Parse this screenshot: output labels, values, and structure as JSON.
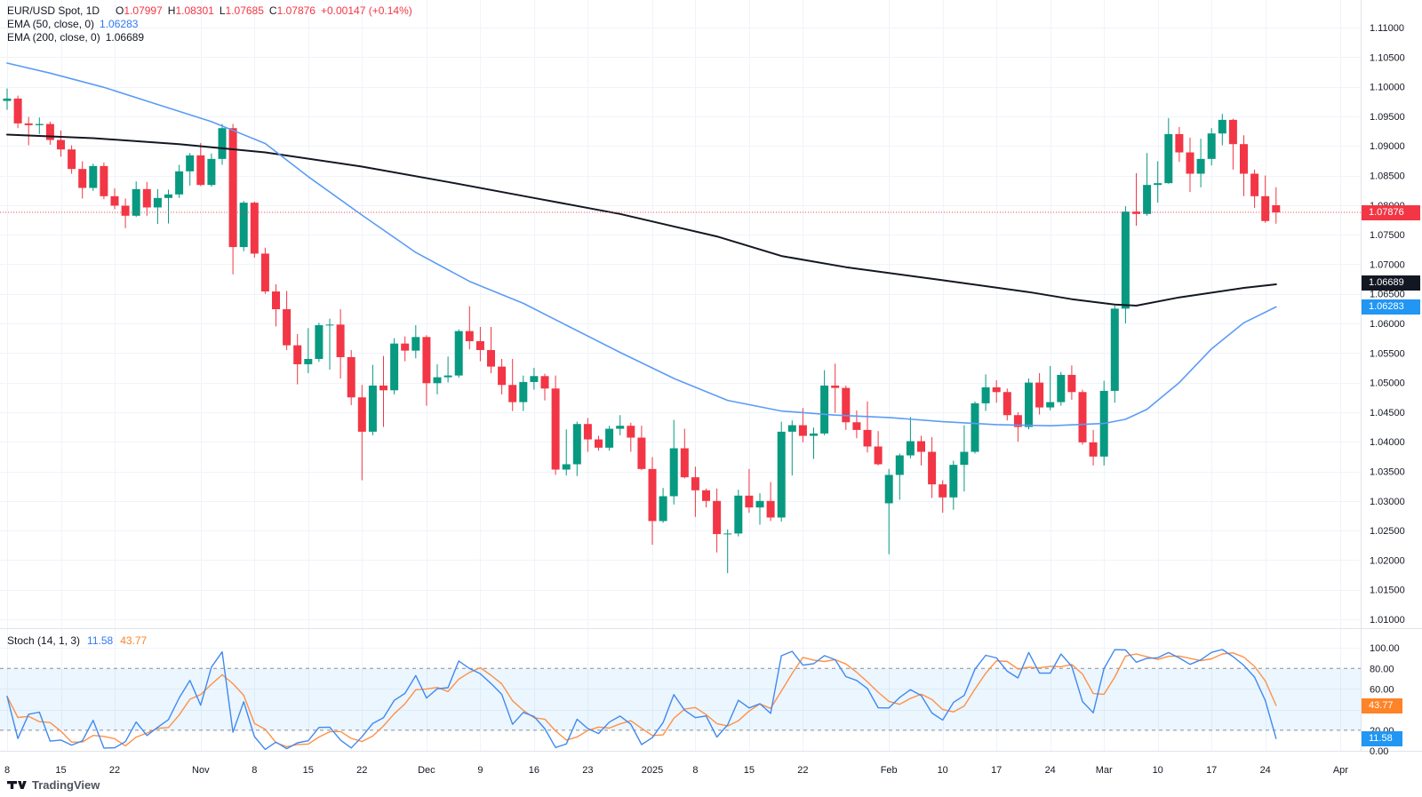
{
  "legend": {
    "symbol": {
      "title": "EUR/USD Spot, 1D",
      "open_label": "O",
      "open": "1.07997",
      "high_label": "H",
      "high": "1.08301",
      "low_label": "L",
      "low": "1.07685",
      "close_label": "C",
      "close": "1.07876",
      "change": "+0.00147 (+0.14%)"
    },
    "ema50": {
      "label": "EMA (50, close, 0)",
      "value": "1.06283"
    },
    "ema200": {
      "label": "EMA (200, close, 0)",
      "value": "1.06689"
    },
    "stoch": {
      "label": "Stoch (14, 1, 3)",
      "k": "11.58",
      "d": "43.77"
    }
  },
  "badges": {
    "last": "1.07876",
    "ema200": "1.06689",
    "ema50": "1.06283",
    "stoch_k": "11.58",
    "stoch_d": "43.77"
  },
  "footer": {
    "brand": "TradingView"
  },
  "colors": {
    "background": "#ffffff",
    "grid": "#f0f3fa",
    "axis_border": "#e0e3eb",
    "axis_text": "#131722",
    "candle_up": "#089981",
    "candle_down": "#f23645",
    "ema50_line": "#5b9cf6",
    "ema200_line": "#131722",
    "stoch_k_line": "#4189f0",
    "stoch_d_line": "#ff9147",
    "stoch_band_fill": "#2196f3",
    "stoch_dashed": "#787b86",
    "last_price_line": "#f23645",
    "badge_last_bg": "#f23645",
    "badge_ema200_bg": "#131722",
    "badge_ema50_bg": "#2196f3",
    "badge_stoch_k_bg": "#2196f3",
    "badge_stoch_d_bg": "#ff8327"
  },
  "chart_data": {
    "type": "candlestick",
    "title": "EUR/USD Spot",
    "interval": "1D",
    "panes": [
      "price",
      "stochastic"
    ],
    "price_pane": {
      "ylim": [
        1.01,
        1.11
      ],
      "tick_labels": [
        "1.11000",
        "1.10500",
        "1.10000",
        "1.09500",
        "1.09000",
        "1.08500",
        "1.08000",
        "1.07500",
        "1.07000",
        "1.06500",
        "1.06000",
        "1.05500",
        "1.05000",
        "1.04500",
        "1.04000",
        "1.03500",
        "1.03000",
        "1.02500",
        "1.02000",
        "1.01500",
        "1.01000"
      ],
      "last_price": 1.07876,
      "ema50_last": 1.06283,
      "ema200_last": 1.06689,
      "ohlc": [
        [
          "10-08",
          1.0976,
          1.0997,
          1.0961,
          1.098
        ],
        [
          "10-09",
          1.098,
          1.0985,
          1.093,
          1.0938
        ],
        [
          "10-10",
          1.0938,
          1.0949,
          1.0901,
          1.0935
        ],
        [
          "10-11",
          1.0935,
          1.0948,
          1.092,
          1.0937
        ],
        [
          "10-14",
          1.0937,
          1.0941,
          1.0902,
          1.091
        ],
        [
          "10-15",
          1.091,
          1.0926,
          1.0882,
          1.0894
        ],
        [
          "10-16",
          1.0894,
          1.0901,
          1.0853,
          1.0861
        ],
        [
          "10-17",
          1.0861,
          1.0874,
          1.0811,
          1.0829
        ],
        [
          "10-18",
          1.0829,
          1.087,
          1.0824,
          1.0866
        ],
        [
          "10-21",
          1.0866,
          1.0872,
          1.081,
          1.0815
        ],
        [
          "10-22",
          1.0815,
          1.0828,
          1.0793,
          1.0799
        ],
        [
          "10-23",
          1.0799,
          1.0811,
          1.0761,
          1.0782
        ],
        [
          "10-24",
          1.0782,
          1.084,
          1.078,
          1.0827
        ],
        [
          "10-25",
          1.0827,
          1.0839,
          1.0782,
          1.0796
        ],
        [
          "10-28",
          1.0796,
          1.0827,
          1.0768,
          1.0812
        ],
        [
          "10-29",
          1.0812,
          1.0826,
          1.0769,
          1.0818
        ],
        [
          "10-30",
          1.0818,
          1.0868,
          1.0812,
          1.0857
        ],
        [
          "10-31",
          1.0857,
          1.0888,
          1.0833,
          1.0884
        ],
        [
          "11-01",
          1.0884,
          1.0905,
          1.0832,
          1.0834
        ],
        [
          "11-04",
          1.0834,
          1.0887,
          1.0831,
          1.0878
        ],
        [
          "11-05",
          1.0878,
          1.0937,
          1.0868,
          1.093
        ],
        [
          "11-06",
          1.093,
          1.0937,
          1.0683,
          1.0729
        ],
        [
          "11-07",
          1.0729,
          1.0807,
          1.0722,
          1.0804
        ],
        [
          "11-08",
          1.0804,
          1.0806,
          1.0711,
          1.0718
        ],
        [
          "11-11",
          1.0718,
          1.0728,
          1.065,
          1.0654
        ],
        [
          "11-12",
          1.0654,
          1.0666,
          1.0595,
          1.0624
        ],
        [
          "11-13",
          1.0624,
          1.0655,
          1.0555,
          1.0563
        ],
        [
          "11-14",
          1.0563,
          1.0582,
          1.0497,
          1.0531
        ],
        [
          "11-15",
          1.0531,
          1.0592,
          1.0516,
          1.054
        ],
        [
          "11-18",
          1.054,
          1.0601,
          1.0535,
          1.0597
        ],
        [
          "11-19",
          1.0597,
          1.0608,
          1.0522,
          1.0598
        ],
        [
          "11-20",
          1.0598,
          1.0624,
          1.0507,
          1.0543
        ],
        [
          "11-21",
          1.0543,
          1.0555,
          1.0462,
          1.0475
        ],
        [
          "11-22",
          1.0475,
          1.0496,
          1.0335,
          1.0417
        ],
        [
          "11-25",
          1.0417,
          1.053,
          1.0411,
          1.0495
        ],
        [
          "11-26",
          1.0495,
          1.0545,
          1.0425,
          1.0487
        ],
        [
          "11-27",
          1.0487,
          1.0575,
          1.048,
          1.0566
        ],
        [
          "11-28",
          1.0566,
          1.0578,
          1.0536,
          1.0554
        ],
        [
          "11-29",
          1.0554,
          1.0597,
          1.0541,
          1.0577
        ],
        [
          "12-02",
          1.0577,
          1.058,
          1.0461,
          1.0499
        ],
        [
          "12-03",
          1.0499,
          1.0531,
          1.048,
          1.0509
        ],
        [
          "12-04",
          1.0509,
          1.0544,
          1.05,
          1.0512
        ],
        [
          "12-05",
          1.0512,
          1.059,
          1.0508,
          1.0587
        ],
        [
          "12-06",
          1.0587,
          1.0629,
          1.0556,
          1.057
        ],
        [
          "12-09",
          1.057,
          1.0594,
          1.0536,
          1.0555
        ],
        [
          "12-10",
          1.0555,
          1.0594,
          1.0516,
          1.0527
        ],
        [
          "12-11",
          1.0527,
          1.054,
          1.048,
          1.0496
        ],
        [
          "12-12",
          1.0496,
          1.054,
          1.0452,
          1.0467
        ],
        [
          "12-13",
          1.0467,
          1.0512,
          1.0452,
          1.0501
        ],
        [
          "12-16",
          1.0501,
          1.0525,
          1.0488,
          1.0511
        ],
        [
          "12-17",
          1.0511,
          1.0515,
          1.047,
          1.049
        ],
        [
          "12-18",
          1.049,
          1.0512,
          1.0344,
          1.0353
        ],
        [
          "12-19",
          1.0353,
          1.0421,
          1.0343,
          1.0362
        ],
        [
          "12-20",
          1.0362,
          1.0434,
          1.0342,
          1.043
        ],
        [
          "12-23",
          1.043,
          1.044,
          1.0383,
          1.0404
        ],
        [
          "12-24",
          1.0404,
          1.041,
          1.0385,
          1.039
        ],
        [
          "12-26",
          1.039,
          1.0427,
          1.0385,
          1.0422
        ],
        [
          "12-27",
          1.0422,
          1.0445,
          1.0411,
          1.0427
        ],
        [
          "12-30",
          1.0427,
          1.0432,
          1.0383,
          1.0407
        ],
        [
          "12-31",
          1.0407,
          1.0427,
          1.0352,
          1.0354
        ],
        [
          "01-02",
          1.0354,
          1.0374,
          1.0226,
          1.0266
        ],
        [
          "01-03",
          1.0266,
          1.0322,
          1.0263,
          1.0308
        ],
        [
          "01-06",
          1.0308,
          1.0437,
          1.0294,
          1.0389
        ],
        [
          "01-07",
          1.0389,
          1.0422,
          1.0338,
          1.034
        ],
        [
          "01-08",
          1.034,
          1.0358,
          1.0273,
          1.0318
        ],
        [
          "01-09",
          1.0318,
          1.0321,
          1.0289,
          1.03
        ],
        [
          "01-10",
          1.03,
          1.0321,
          1.0213,
          1.0244
        ],
        [
          "01-13",
          1.0244,
          1.0252,
          1.0178,
          1.0245
        ],
        [
          "01-14",
          1.0245,
          1.0319,
          1.024,
          1.0309
        ],
        [
          "01-15",
          1.0309,
          1.0354,
          1.028,
          1.0289
        ],
        [
          "01-16",
          1.0289,
          1.0313,
          1.026,
          1.03
        ],
        [
          "01-17",
          1.03,
          1.0332,
          1.0266,
          1.0272
        ],
        [
          "01-20",
          1.0272,
          1.0434,
          1.0265,
          1.0417
        ],
        [
          "01-21",
          1.0417,
          1.0436,
          1.0343,
          1.0428
        ],
        [
          "01-22",
          1.0428,
          1.0457,
          1.0399,
          1.041
        ],
        [
          "01-23",
          1.041,
          1.0424,
          1.0371,
          1.0414
        ],
        [
          "01-24",
          1.0414,
          1.0521,
          1.0411,
          1.0495
        ],
        [
          "01-27",
          1.0495,
          1.0532,
          1.0449,
          1.0491
        ],
        [
          "01-28",
          1.0491,
          1.0495,
          1.042,
          1.0433
        ],
        [
          "01-29",
          1.0433,
          1.0453,
          1.0406,
          1.042
        ],
        [
          "01-30",
          1.042,
          1.0468,
          1.0382,
          1.0392
        ],
        [
          "01-31",
          1.0392,
          1.0418,
          1.036,
          1.0362
        ],
        [
          "02-03",
          1.0296,
          1.0354,
          1.021,
          1.0344
        ],
        [
          "02-04",
          1.0344,
          1.038,
          1.0302,
          1.0377
        ],
        [
          "02-05",
          1.0377,
          1.0442,
          1.0372,
          1.0401
        ],
        [
          "02-06",
          1.0401,
          1.041,
          1.036,
          1.0383
        ],
        [
          "02-07",
          1.0383,
          1.0408,
          1.0305,
          1.0328
        ],
        [
          "02-10",
          1.0328,
          1.0335,
          1.028,
          1.0306
        ],
        [
          "02-11",
          1.0306,
          1.0368,
          1.0285,
          1.0361
        ],
        [
          "02-12",
          1.0361,
          1.0428,
          1.0316,
          1.0383
        ],
        [
          "02-13",
          1.0383,
          1.0468,
          1.038,
          1.0465
        ],
        [
          "02-14",
          1.0465,
          1.0514,
          1.0452,
          1.0492
        ],
        [
          "02-17",
          1.0492,
          1.0504,
          1.0466,
          1.0484
        ],
        [
          "02-18",
          1.0484,
          1.049,
          1.0436,
          1.0445
        ],
        [
          "02-19",
          1.0445,
          1.045,
          1.04,
          1.0425
        ],
        [
          "02-20",
          1.0425,
          1.0507,
          1.0421,
          1.05
        ],
        [
          "02-21",
          1.05,
          1.0516,
          1.0446,
          1.0458
        ],
        [
          "02-24",
          1.0458,
          1.0528,
          1.0453,
          1.0467
        ],
        [
          "02-25",
          1.0467,
          1.0518,
          1.0461,
          1.0513
        ],
        [
          "02-26",
          1.0513,
          1.0529,
          1.0471,
          1.0484
        ],
        [
          "02-27",
          1.0484,
          1.0488,
          1.0395,
          1.0399
        ],
        [
          "02-28",
          1.0399,
          1.042,
          1.036,
          1.0375
        ],
        [
          "03-03",
          1.0375,
          1.0503,
          1.036,
          1.0486
        ],
        [
          "03-04",
          1.0486,
          1.063,
          1.0466,
          1.0625
        ],
        [
          "03-05",
          1.0625,
          1.0798,
          1.06,
          1.0789
        ],
        [
          "03-06",
          1.0789,
          1.0854,
          1.0765,
          1.0785
        ],
        [
          "03-07",
          1.0785,
          1.0888,
          1.0782,
          1.0834
        ],
        [
          "03-10",
          1.0834,
          1.0874,
          1.0804,
          1.0837
        ],
        [
          "03-11",
          1.0837,
          1.0947,
          1.0836,
          1.092
        ],
        [
          "03-12",
          1.092,
          1.0932,
          1.0873,
          1.0889
        ],
        [
          "03-13",
          1.0889,
          1.0914,
          1.0822,
          1.0853
        ],
        [
          "03-14",
          1.0853,
          1.0912,
          1.083,
          1.0878
        ],
        [
          "03-17",
          1.0878,
          1.093,
          1.0867,
          1.0921
        ],
        [
          "03-18",
          1.0921,
          1.0954,
          1.0901,
          1.0944
        ],
        [
          "03-19",
          1.0944,
          1.0946,
          1.086,
          1.0903
        ],
        [
          "03-20",
          1.0903,
          1.0918,
          1.0815,
          1.0853
        ],
        [
          "03-21",
          1.0853,
          1.086,
          1.0795,
          1.0815
        ],
        [
          "03-24",
          1.0815,
          1.085,
          1.077,
          1.0773
        ],
        [
          "03-25",
          1.07997,
          1.08301,
          1.07685,
          1.07876
        ]
      ],
      "ema50_points": [
        [
          0,
          1.104
        ],
        [
          4,
          1.1023
        ],
        [
          9,
          1.0999
        ],
        [
          14,
          1.097
        ],
        [
          19,
          1.0941
        ],
        [
          24,
          1.0904
        ],
        [
          28,
          1.0848
        ],
        [
          33,
          1.0783
        ],
        [
          38,
          1.072
        ],
        [
          43,
          1.0671
        ],
        [
          48,
          1.0634
        ],
        [
          52,
          1.0597
        ],
        [
          57,
          1.0551
        ],
        [
          62,
          1.0507
        ],
        [
          67,
          1.047
        ],
        [
          72,
          1.0452
        ],
        [
          77,
          1.0445
        ],
        [
          82,
          1.0441
        ],
        [
          87,
          1.0434
        ],
        [
          92,
          1.0429
        ],
        [
          97,
          1.0427
        ],
        [
          102,
          1.0431
        ],
        [
          104,
          1.0438
        ],
        [
          106,
          1.0455
        ],
        [
          109,
          1.05
        ],
        [
          112,
          1.0557
        ],
        [
          115,
          1.0601
        ],
        [
          118,
          1.0628
        ]
      ],
      "ema200_points": [
        [
          0,
          1.0919
        ],
        [
          8,
          1.0913
        ],
        [
          16,
          1.0903
        ],
        [
          24,
          1.0889
        ],
        [
          33,
          1.0865
        ],
        [
          41,
          1.0839
        ],
        [
          49,
          1.0812
        ],
        [
          57,
          1.0785
        ],
        [
          66,
          1.0747
        ],
        [
          72,
          1.0714
        ],
        [
          78,
          1.0695
        ],
        [
          87,
          1.0673
        ],
        [
          95,
          1.0653
        ],
        [
          99,
          1.0641
        ],
        [
          103,
          1.0632
        ],
        [
          105,
          1.063
        ],
        [
          109,
          1.0644
        ],
        [
          115,
          1.066
        ],
        [
          118,
          1.0666
        ]
      ]
    },
    "stoch_pane": {
      "params": "(14, 1, 3)",
      "k_period": 14,
      "k_smooth": 1,
      "d_period": 3,
      "k_last": 11.58,
      "d_last": 43.77,
      "upper_band": 80,
      "lower_band": 20,
      "ylim": [
        0,
        100
      ],
      "tick_labels": [
        "100.00",
        "80.00",
        "60.00",
        "40.00",
        "20.00",
        "0.00"
      ]
    },
    "time_labels": [
      {
        "t": "8",
        "i": 0
      },
      {
        "t": "15",
        "i": 5
      },
      {
        "t": "22",
        "i": 10
      },
      {
        "t": "Nov",
        "i": 18
      },
      {
        "t": "8",
        "i": 23
      },
      {
        "t": "15",
        "i": 28
      },
      {
        "t": "22",
        "i": 33
      },
      {
        "t": "Dec",
        "i": 39
      },
      {
        "t": "9",
        "i": 44
      },
      {
        "t": "16",
        "i": 49
      },
      {
        "t": "23",
        "i": 54
      },
      {
        "t": "2025",
        "i": 60
      },
      {
        "t": "8",
        "i": 64
      },
      {
        "t": "15",
        "i": 69
      },
      {
        "t": "22",
        "i": 74
      },
      {
        "t": "Feb",
        "i": 82
      },
      {
        "t": "10",
        "i": 87
      },
      {
        "t": "17",
        "i": 92
      },
      {
        "t": "24",
        "i": 97
      },
      {
        "t": "Mar",
        "i": 102
      },
      {
        "t": "10",
        "i": 107
      },
      {
        "t": "17",
        "i": 112
      },
      {
        "t": "24",
        "i": 117
      },
      {
        "t": "Apr",
        "i": 124
      }
    ]
  }
}
